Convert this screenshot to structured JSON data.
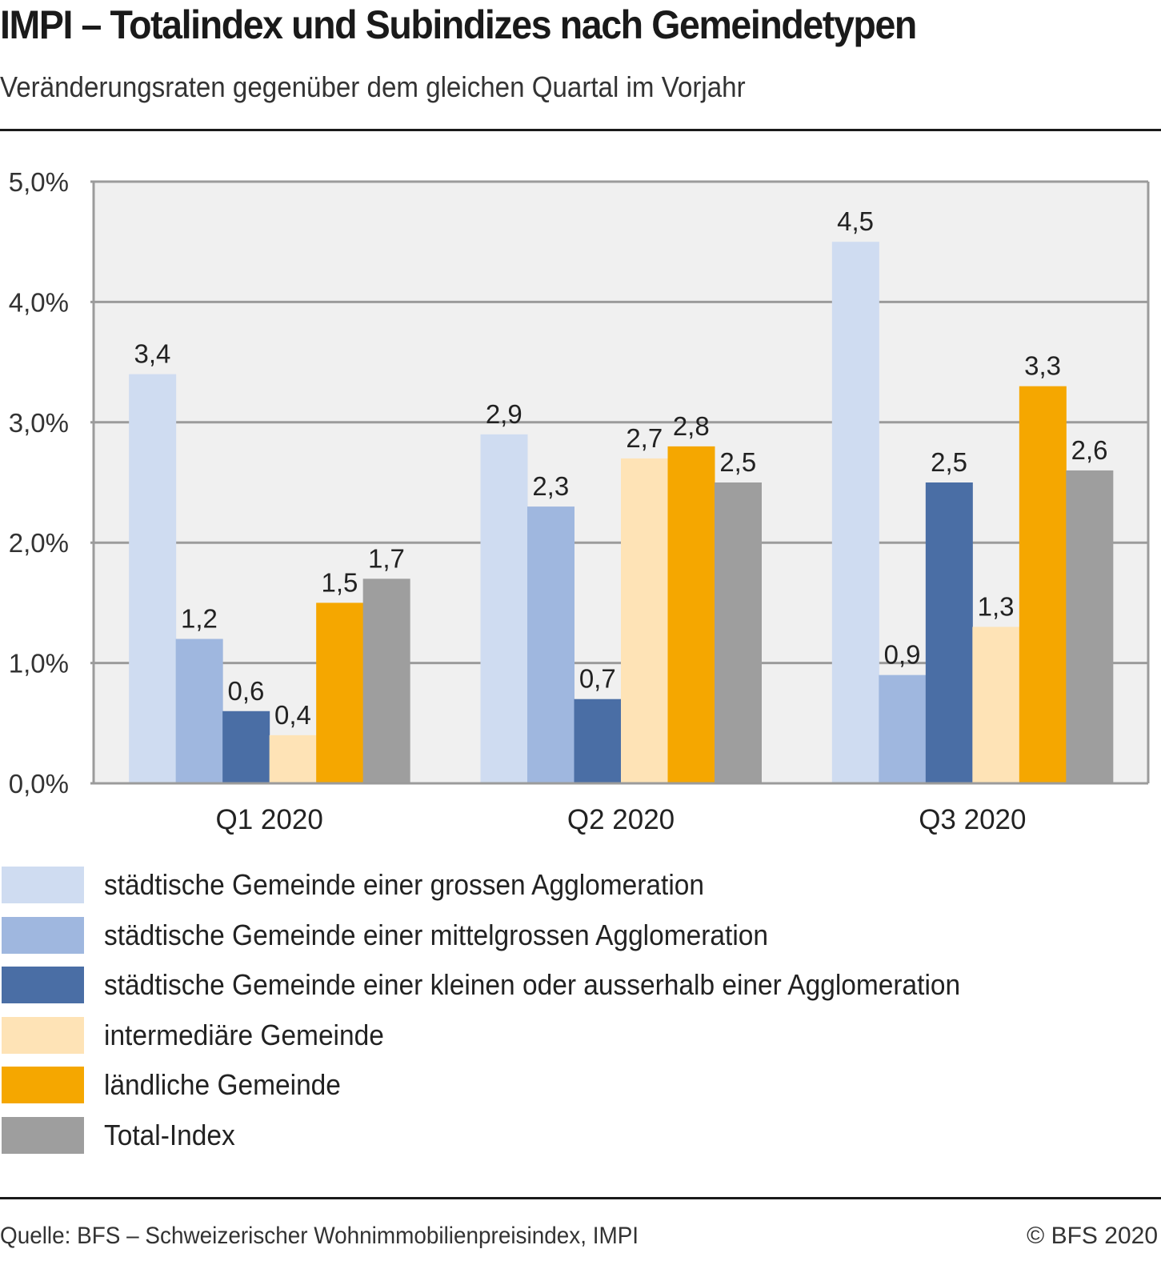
{
  "header": {
    "title": "IMPI – Totalindex und Subindizes nach Gemeindetypen",
    "subtitle": "Veränderungsraten gegenüber dem gleichen Quartal im Vorjahr"
  },
  "footer": {
    "source": "Quelle: BFS – Schweizerischer Wohnimmobilienpreisindex, IMPI",
    "copyright": "© BFS 2020"
  },
  "chart_data": {
    "type": "bar",
    "title": "IMPI – Totalindex und Subindizes nach Gemeindetypen",
    "subtitle": "Veränderungsraten gegenüber dem gleichen Quartal im Vorjahr",
    "xlabel": "",
    "ylabel": "",
    "categories": [
      "Q1 2020",
      "Q2 2020",
      "Q3 2020"
    ],
    "ylim": [
      0,
      5
    ],
    "yticks": [
      0,
      1,
      2,
      3,
      4,
      5
    ],
    "ytick_labels": [
      "0,0%",
      "1,0%",
      "2,0%",
      "3,0%",
      "4,0%",
      "5,0%"
    ],
    "grid": true,
    "legend_position": "bottom",
    "series": [
      {
        "name": "städtische Gemeinde einer grossen Agglomeration",
        "color": "#cfdcf1",
        "values": [
          3.4,
          2.9,
          4.5
        ],
        "labels": [
          "3,4",
          "2,9",
          "4,5"
        ]
      },
      {
        "name": "städtische Gemeinde einer mittelgrossen Agglomeration",
        "color": "#9fb7df",
        "values": [
          1.2,
          2.3,
          0.9
        ],
        "labels": [
          "1,2",
          "2,3",
          "0,9"
        ]
      },
      {
        "name": "städtische Gemeinde einer kleinen oder ausserhalb einer Agglomeration",
        "color": "#4a6ea5",
        "values": [
          0.6,
          0.7,
          2.5
        ],
        "labels": [
          "0,6",
          "0,7",
          "2,5"
        ]
      },
      {
        "name": "intermediäre Gemeinde",
        "color": "#fee3b6",
        "values": [
          0.4,
          2.7,
          1.3
        ],
        "labels": [
          "0,4",
          "2,7",
          "1,3"
        ]
      },
      {
        "name": "ländliche Gemeinde",
        "color": "#f5a700",
        "values": [
          1.5,
          2.8,
          3.3
        ],
        "labels": [
          "1,5",
          "2,8",
          "3,3"
        ]
      },
      {
        "name": "Total-Index",
        "color": "#9e9e9e",
        "values": [
          1.7,
          2.5,
          2.6
        ],
        "labels": [
          "1,7",
          "2,5",
          "2,6"
        ]
      }
    ]
  }
}
